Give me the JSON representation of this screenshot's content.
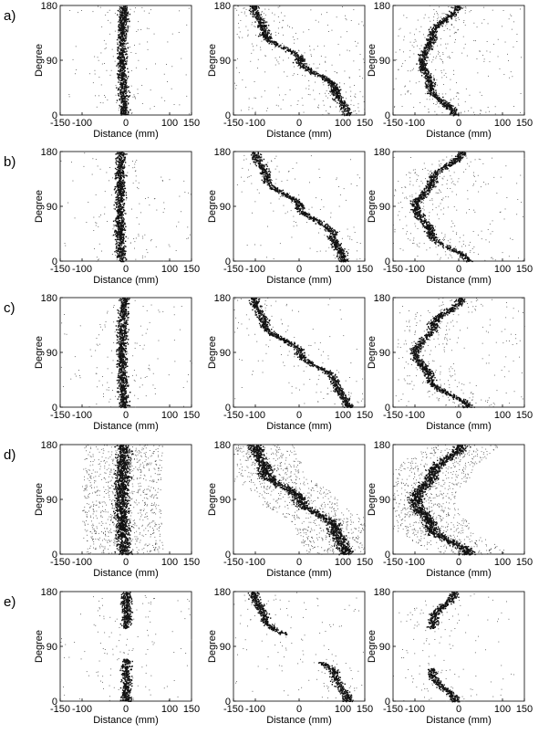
{
  "figure": {
    "row_labels": [
      "a)",
      "b)",
      "c)",
      "d)",
      "e)"
    ],
    "column_shapes": [
      "straight",
      "s-curve",
      "arc"
    ]
  },
  "chart_data": [
    {
      "type": "scatter",
      "row": "a)",
      "column": 1,
      "xlabel": "Distance (mm)",
      "ylabel": "Degree",
      "xlim": [
        -150,
        150
      ],
      "ylim": [
        0,
        180
      ],
      "xticks": [
        -150,
        -100,
        0,
        100,
        150
      ],
      "yticks": [
        0,
        90,
        180
      ],
      "trace": [
        {
          "y": 0,
          "x": -5
        },
        {
          "y": 45,
          "x": -8
        },
        {
          "y": 90,
          "x": -10
        },
        {
          "y": 135,
          "x": -9
        },
        {
          "y": 180,
          "x": -5
        }
      ],
      "density": "low"
    },
    {
      "type": "scatter",
      "row": "a)",
      "column": 2,
      "xlabel": "Distance (mm)",
      "ylabel": "Degree",
      "xlim": [
        -150,
        150
      ],
      "ylim": [
        0,
        180
      ],
      "xticks": [
        -150,
        -100,
        0,
        100,
        150
      ],
      "yticks": [
        0,
        90,
        180
      ],
      "trace": [
        {
          "y": 0,
          "x": 110
        },
        {
          "y": 45,
          "x": 80
        },
        {
          "y": 90,
          "x": 0
        },
        {
          "y": 135,
          "x": -80
        },
        {
          "y": 180,
          "x": -105
        }
      ],
      "density": "medium"
    },
    {
      "type": "scatter",
      "row": "a)",
      "column": 3,
      "xlabel": "Distance (mm)",
      "ylabel": "Degree",
      "xlim": [
        -150,
        150
      ],
      "ylim": [
        0,
        180
      ],
      "xticks": [
        -150,
        -100,
        0,
        100,
        150
      ],
      "yticks": [
        0,
        90,
        180
      ],
      "trace": [
        {
          "y": 0,
          "x": -10
        },
        {
          "y": 45,
          "x": -65
        },
        {
          "y": 90,
          "x": -85
        },
        {
          "y": 135,
          "x": -60
        },
        {
          "y": 180,
          "x": -5
        }
      ],
      "density": "medium"
    },
    {
      "type": "scatter",
      "row": "b)",
      "column": 1,
      "xlabel": "Distance (mm)",
      "ylabel": "Degree",
      "xlim": [
        -150,
        150
      ],
      "ylim": [
        0,
        180
      ],
      "xticks": [
        -150,
        -100,
        0,
        100,
        150
      ],
      "yticks": [
        0,
        90,
        180
      ],
      "trace": [
        {
          "y": 0,
          "x": -12
        },
        {
          "y": 45,
          "x": -14
        },
        {
          "y": 90,
          "x": -15
        },
        {
          "y": 135,
          "x": -14
        },
        {
          "y": 180,
          "x": -12
        }
      ],
      "density": "low"
    },
    {
      "type": "scatter",
      "row": "b)",
      "column": 2,
      "xlabel": "Distance (mm)",
      "ylabel": "Degree",
      "xlim": [
        -150,
        150
      ],
      "ylim": [
        0,
        180
      ],
      "xticks": [
        -150,
        -100,
        0,
        100,
        150
      ],
      "yticks": [
        0,
        90,
        180
      ],
      "trace": [
        {
          "y": 0,
          "x": 100
        },
        {
          "y": 45,
          "x": 75
        },
        {
          "y": 90,
          "x": 0
        },
        {
          "y": 135,
          "x": -75
        },
        {
          "y": 180,
          "x": -100
        }
      ],
      "density": "low"
    },
    {
      "type": "scatter",
      "row": "b)",
      "column": 3,
      "xlabel": "Distance (mm)",
      "ylabel": "Degree",
      "xlim": [
        -150,
        150
      ],
      "ylim": [
        0,
        180
      ],
      "xticks": [
        -150,
        -100,
        0,
        100,
        150
      ],
      "yticks": [
        0,
        90,
        180
      ],
      "trace": [
        {
          "y": 0,
          "x": 20
        },
        {
          "y": 45,
          "x": -65
        },
        {
          "y": 90,
          "x": -100
        },
        {
          "y": 135,
          "x": -60
        },
        {
          "y": 180,
          "x": 5
        }
      ],
      "density": "medium"
    },
    {
      "type": "scatter",
      "row": "c)",
      "column": 1,
      "xlabel": "Distance (mm)",
      "ylabel": "Degree",
      "xlim": [
        -150,
        150
      ],
      "ylim": [
        0,
        180
      ],
      "xticks": [
        -150,
        -100,
        0,
        100,
        150
      ],
      "yticks": [
        0,
        90,
        180
      ],
      "trace": [
        {
          "y": 0,
          "x": -5
        },
        {
          "y": 45,
          "x": -9
        },
        {
          "y": 90,
          "x": -11
        },
        {
          "y": 135,
          "x": -9
        },
        {
          "y": 180,
          "x": -5
        }
      ],
      "density": "low"
    },
    {
      "type": "scatter",
      "row": "c)",
      "column": 2,
      "xlabel": "Distance (mm)",
      "ylabel": "Degree",
      "xlim": [
        -150,
        150
      ],
      "ylim": [
        0,
        180
      ],
      "xticks": [
        -150,
        -100,
        0,
        100,
        150
      ],
      "yticks": [
        0,
        90,
        180
      ],
      "trace": [
        {
          "y": 0,
          "x": 110
        },
        {
          "y": 45,
          "x": 80
        },
        {
          "y": 90,
          "x": 0
        },
        {
          "y": 135,
          "x": -80
        },
        {
          "y": 180,
          "x": -105
        }
      ],
      "density": "low"
    },
    {
      "type": "scatter",
      "row": "c)",
      "column": 3,
      "xlabel": "Distance (mm)",
      "ylabel": "Degree",
      "xlim": [
        -150,
        150
      ],
      "ylim": [
        0,
        180
      ],
      "xticks": [
        -150,
        -100,
        0,
        100,
        150
      ],
      "yticks": [
        0,
        90,
        180
      ],
      "trace": [
        {
          "y": 0,
          "x": 20
        },
        {
          "y": 45,
          "x": -65
        },
        {
          "y": 90,
          "x": -100
        },
        {
          "y": 135,
          "x": -60
        },
        {
          "y": 180,
          "x": 5
        }
      ],
      "density": "medium"
    },
    {
      "type": "scatter",
      "row": "d)",
      "column": 1,
      "xlabel": "Distance (mm)",
      "ylabel": "Degree",
      "xlim": [
        -150,
        150
      ],
      "ylim": [
        0,
        180
      ],
      "xticks": [
        -150,
        -100,
        0,
        100,
        150
      ],
      "yticks": [
        0,
        90,
        180
      ],
      "trace": [
        {
          "y": 0,
          "x": -5
        },
        {
          "y": 45,
          "x": -9
        },
        {
          "y": 90,
          "x": -11
        },
        {
          "y": 135,
          "x": -9
        },
        {
          "y": 180,
          "x": -5
        }
      ],
      "density": "high"
    },
    {
      "type": "scatter",
      "row": "d)",
      "column": 2,
      "xlabel": "Distance (mm)",
      "ylabel": "Degree",
      "xlim": [
        -150,
        150
      ],
      "ylim": [
        0,
        180
      ],
      "xticks": [
        -150,
        -100,
        0,
        100,
        150
      ],
      "yticks": [
        0,
        90,
        180
      ],
      "trace": [
        {
          "y": 0,
          "x": 105
        },
        {
          "y": 45,
          "x": 80
        },
        {
          "y": 90,
          "x": 0
        },
        {
          "y": 135,
          "x": -80
        },
        {
          "y": 180,
          "x": -100
        }
      ],
      "density": "high"
    },
    {
      "type": "scatter",
      "row": "d)",
      "column": 3,
      "xlabel": "Distance (mm)",
      "ylabel": "Degree",
      "xlim": [
        -150,
        150
      ],
      "ylim": [
        0,
        180
      ],
      "xticks": [
        -150,
        -100,
        0,
        100,
        150
      ],
      "yticks": [
        0,
        90,
        180
      ],
      "trace": [
        {
          "y": 0,
          "x": 20
        },
        {
          "y": 45,
          "x": -65
        },
        {
          "y": 90,
          "x": -100
        },
        {
          "y": 135,
          "x": -60
        },
        {
          "y": 180,
          "x": 5
        }
      ],
      "density": "high"
    },
    {
      "type": "scatter",
      "row": "e)",
      "column": 1,
      "xlabel": "Distance (mm)",
      "ylabel": "Degree",
      "xlim": [
        -150,
        150
      ],
      "ylim": [
        0,
        180
      ],
      "xticks": [
        -150,
        -100,
        0,
        100,
        150
      ],
      "yticks": [
        0,
        90,
        180
      ],
      "trace": [
        {
          "y": 0,
          "x": 0
        },
        {
          "y": 45,
          "x": 0
        },
        {
          "y": 90,
          "x": 0
        },
        {
          "y": 135,
          "x": 0
        },
        {
          "y": 180,
          "x": 0
        }
      ],
      "gaps": [
        [
          70,
          120
        ]
      ],
      "density": "low"
    },
    {
      "type": "scatter",
      "row": "e)",
      "column": 2,
      "xlabel": "Distance (mm)",
      "ylabel": "Degree",
      "xlim": [
        -150,
        150
      ],
      "ylim": [
        0,
        180
      ],
      "xticks": [
        -150,
        -100,
        0,
        100,
        150
      ],
      "yticks": [
        0,
        90,
        180
      ],
      "trace": [
        {
          "y": 0,
          "x": 110
        },
        {
          "y": 45,
          "x": 80
        },
        {
          "y": 90,
          "x": 0
        },
        {
          "y": 135,
          "x": -80
        },
        {
          "y": 180,
          "x": -105
        }
      ],
      "gaps": [
        [
          65,
          110
        ]
      ],
      "density": "low"
    },
    {
      "type": "scatter",
      "row": "e)",
      "column": 3,
      "xlabel": "Distance (mm)",
      "ylabel": "Degree",
      "xlim": [
        -150,
        150
      ],
      "ylim": [
        0,
        180
      ],
      "xticks": [
        -150,
        -100,
        0,
        100,
        150
      ],
      "yticks": [
        0,
        90,
        180
      ],
      "trace": [
        {
          "y": 0,
          "x": -10
        },
        {
          "y": 45,
          "x": -60
        },
        {
          "y": 90,
          "x": -75
        },
        {
          "y": 135,
          "x": -60
        },
        {
          "y": 180,
          "x": -10
        }
      ],
      "gaps": [
        [
          55,
          120
        ]
      ],
      "density": "low"
    }
  ]
}
